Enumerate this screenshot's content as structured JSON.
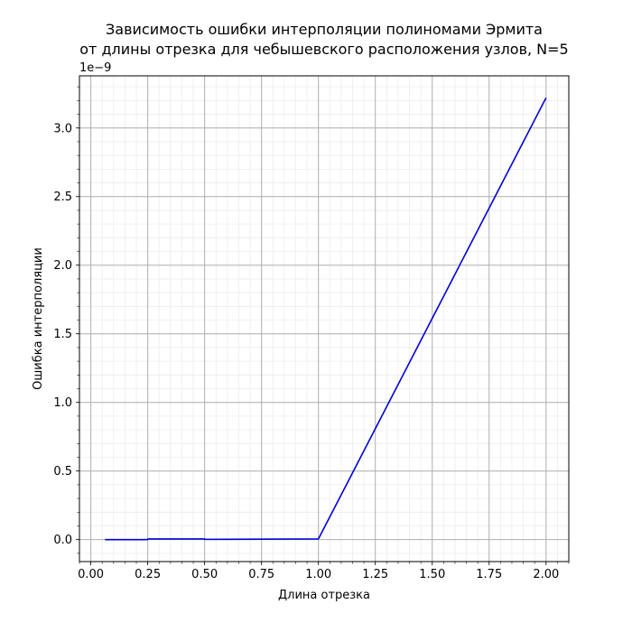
{
  "chart_data": {
    "type": "line",
    "title_line1": "Зависимость ошибки интерполяции полиномами Эрмита",
    "title_line2": "от длины отрезка для чебышевского расположения узлов, N=5",
    "xlabel": "Длина отрезка",
    "ylabel": "Ошибка интерполяции",
    "y_offset_text": "1e−9",
    "xlim": [
      -0.05,
      2.1
    ],
    "ylim": [
      -0.16,
      3.38
    ],
    "x_ticks": [
      0.0,
      0.25,
      0.5,
      0.75,
      1.0,
      1.25,
      1.5,
      1.75,
      2.0
    ],
    "x_tick_labels": [
      "0.00",
      "0.25",
      "0.50",
      "0.75",
      "1.00",
      "1.25",
      "1.50",
      "1.75",
      "2.00"
    ],
    "y_ticks": [
      0.0,
      0.5,
      1.0,
      1.5,
      2.0,
      2.5,
      3.0
    ],
    "y_tick_labels": [
      "0.0",
      "0.5",
      "1.0",
      "1.5",
      "2.0",
      "2.5",
      "3.0"
    ],
    "x_minor_step": 0.05,
    "y_minor_step": 0.1,
    "grid": true,
    "series": [
      {
        "color": "#0000dd",
        "x": [
          0.0625,
          0.25,
          0.25,
          0.5,
          0.5,
          1.0,
          2.0
        ],
        "y": [
          0.0,
          0.0,
          0.005,
          0.005,
          0.002,
          0.005,
          3.22
        ]
      }
    ]
  }
}
